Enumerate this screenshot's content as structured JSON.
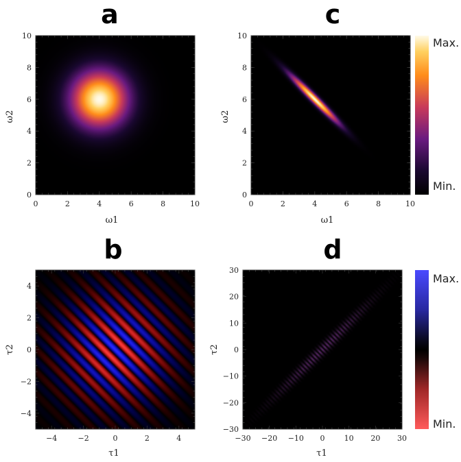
{
  "chart_data": [
    {
      "type": "heatmap",
      "panel": "a",
      "xlabel": "ω1",
      "ylabel": "ω2",
      "xlim": [
        0,
        10
      ],
      "ylim": [
        0,
        10
      ],
      "xticks": [
        "0",
        "2",
        "4",
        "6",
        "8",
        "10"
      ],
      "yticks": [
        "0",
        "2",
        "4",
        "6",
        "8",
        "10"
      ],
      "colormap": "thermal",
      "peak": {
        "x": 4,
        "y": 6
      },
      "spread_x": 1.3,
      "spread_y": 1.3,
      "correlation": 0
    },
    {
      "type": "heatmap",
      "panel": "c",
      "xlabel": "ω1",
      "ylabel": "ω2",
      "xlim": [
        0,
        10
      ],
      "ylim": [
        0,
        10
      ],
      "xticks": [
        "0",
        "2",
        "4",
        "6",
        "8",
        "10"
      ],
      "yticks": [
        "0",
        "2",
        "4",
        "6",
        "8",
        "10"
      ],
      "colormap": "thermal",
      "peak": {
        "x": 4,
        "y": 6
      },
      "spread_along": 1.5,
      "spread_across": 0.16,
      "orientation": "anti-diagonal"
    },
    {
      "type": "heatmap",
      "panel": "b",
      "xlabel": "τ1",
      "ylabel": "τ2",
      "xlim": [
        -5,
        5
      ],
      "ylim": [
        -5,
        5
      ],
      "xticks": [
        "−4",
        "−2",
        "0",
        "2",
        "4"
      ],
      "yticks": [
        "−4",
        "−2",
        "0",
        "2",
        "4"
      ],
      "colormap": "diverging",
      "peak": {
        "x": 0,
        "y": 0
      },
      "fringe_period": 1.0,
      "envelope_spread": 2.3,
      "orientation": "anti-diagonal fringes"
    },
    {
      "type": "heatmap",
      "panel": "d",
      "xlabel": "τ1",
      "ylabel": "τ2",
      "xlim": [
        -30,
        30
      ],
      "ylim": [
        -30,
        30
      ],
      "xticks": [
        "−30",
        "−20",
        "−10",
        "0",
        "10",
        "20",
        "30"
      ],
      "yticks": [
        "−30",
        "−20",
        "−10",
        "0",
        "10",
        "20",
        "30"
      ],
      "colormap": "diverging",
      "peak": {
        "x": 0,
        "y": 0
      },
      "spread_along": 16,
      "spread_across": 1.2,
      "orientation": "diagonal"
    }
  ],
  "panels": {
    "a": {
      "letter": "a",
      "xlabel": "ω1",
      "ylabel": "ω2"
    },
    "c": {
      "letter": "c",
      "xlabel": "ω1",
      "ylabel": "ω2"
    },
    "b": {
      "letter": "b",
      "xlabel": "τ1",
      "ylabel": "τ2"
    },
    "d": {
      "letter": "d",
      "xlabel": "τ1",
      "ylabel": "τ2"
    }
  },
  "colorbars": {
    "top": {
      "max_label": "Max.",
      "min_label": "Min.",
      "colormap": "thermal"
    },
    "bottom": {
      "max_label": "Max.",
      "min_label": "Min.",
      "colormap": "diverging"
    }
  }
}
